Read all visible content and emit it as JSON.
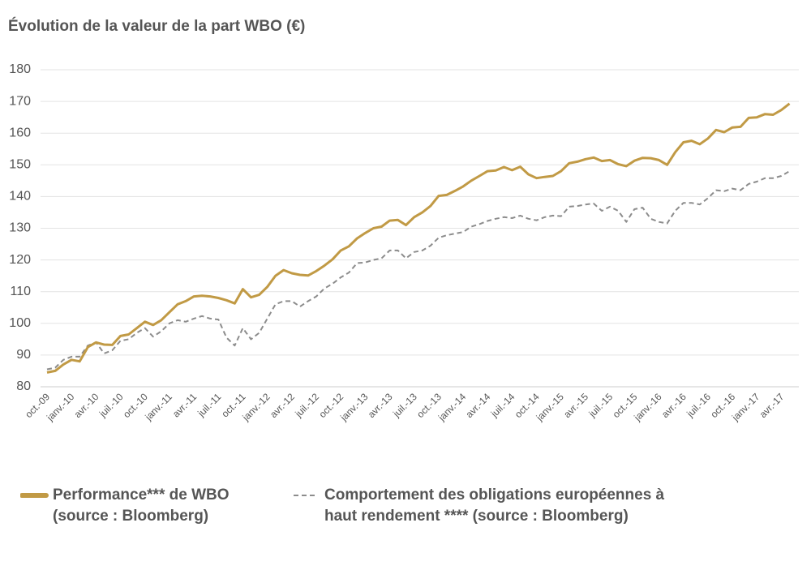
{
  "chart_data": {
    "type": "line",
    "title": "Évolution de la valeur de la part WBO (€)",
    "categories": [
      "oct.-09",
      null,
      null,
      "janv.-10",
      null,
      null,
      "avr.-10",
      null,
      null,
      "juil.-10",
      null,
      null,
      "oct.-10",
      null,
      null,
      "janv.-11",
      null,
      null,
      "avr.-11",
      null,
      null,
      "juil.-11",
      null,
      null,
      "oct.-11",
      null,
      null,
      "janv.-12",
      null,
      null,
      "avr.-12",
      null,
      null,
      "juil.-12",
      null,
      null,
      "oct.-12",
      null,
      null,
      "janv.-13",
      null,
      null,
      "avr.-13",
      null,
      null,
      "juil.-13",
      null,
      null,
      "oct.-13",
      null,
      null,
      "janv.-14",
      null,
      null,
      "avr.-14",
      null,
      null,
      "juil.-14",
      null,
      null,
      "oct.-14",
      null,
      null,
      "janv.-15",
      null,
      null,
      "avr.-15",
      null,
      null,
      "juil.-15",
      null,
      null,
      "oct.-15",
      null,
      null,
      "janv.-16",
      null,
      null,
      "avr.-16",
      null,
      null,
      "juil.-16",
      null,
      null,
      "oct.-16",
      null,
      null,
      "janv.-17",
      null,
      null,
      "avr.-17",
      null
    ],
    "series": [
      {
        "name": "Performance*** de WBO (source : Bloomberg)",
        "color": "#c19a45",
        "dash": false,
        "values": [
          84.5,
          85,
          87,
          88.5,
          88,
          92.5,
          94,
          93.3,
          93.2,
          96,
          96.5,
          98.5,
          100.5,
          99.5,
          101,
          103.5,
          106,
          107,
          108.5,
          108.7,
          108.5,
          108,
          107.3,
          106.3,
          110.8,
          108.2,
          109,
          111.5,
          115,
          116.8,
          115.8,
          115.3,
          115.1,
          116.5,
          118.2,
          120.2,
          123,
          124.3,
          126.8,
          128.5,
          130,
          130.5,
          132.4,
          132.6,
          131,
          133.5,
          135,
          137,
          140.2,
          140.5,
          141.8,
          143.2,
          145,
          146.5,
          148,
          148.2,
          149.3,
          148.3,
          149.4,
          147,
          145.8,
          146.2,
          146.5,
          148,
          150.5,
          151,
          151.8,
          152.3,
          151.2,
          151.5,
          150.2,
          149.6,
          151.3,
          152.2,
          152.1,
          151.5,
          150,
          154,
          157.1,
          157.6,
          156.5,
          158.3,
          161,
          160.3,
          161.8,
          162,
          164.8,
          165,
          166,
          165.8,
          167.3,
          169.3
        ]
      },
      {
        "name": "Comportement des obligations européennes à haut rendement **** (source : Bloomberg)",
        "color": "#8c8c8c",
        "dash": true,
        "values": [
          85.5,
          86,
          88.5,
          89.5,
          89.5,
          93,
          94,
          90.5,
          91.5,
          94.5,
          95,
          97,
          98.5,
          95.8,
          97.5,
          100,
          101,
          100.5,
          101.5,
          102.3,
          101.5,
          101.2,
          95.5,
          93,
          98.5,
          95,
          97,
          101.5,
          106,
          107,
          107,
          105.3,
          107,
          108.5,
          111,
          112.5,
          114.5,
          116,
          119,
          119.2,
          120,
          120.5,
          123,
          123,
          120.5,
          122.5,
          123,
          124.5,
          127,
          127.8,
          128.3,
          128.8,
          130.5,
          131.3,
          132.3,
          133,
          133.5,
          133.2,
          134,
          133,
          132.5,
          133.5,
          134,
          133.8,
          136.8,
          137,
          137.5,
          137.8,
          135.5,
          136.8,
          135.5,
          132,
          136,
          136.5,
          133,
          132,
          131.5,
          135.5,
          138,
          138,
          137.5,
          139.5,
          142,
          141.7,
          142.5,
          142,
          144,
          144.7,
          145.8,
          145.8,
          146.5,
          148
        ]
      }
    ],
    "ylim": [
      80,
      180
    ],
    "yticks": [
      80,
      90,
      100,
      110,
      120,
      130,
      140,
      150,
      160,
      170,
      180
    ],
    "grid": true
  }
}
